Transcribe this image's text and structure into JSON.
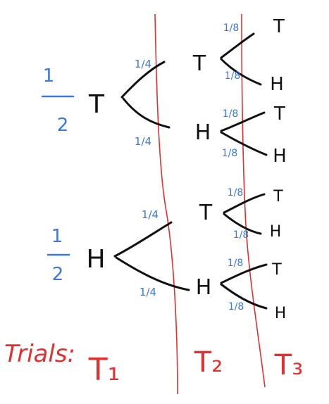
{
  "colors": {
    "ink": "#111111",
    "probability": "#3b78d8",
    "divider": "#e03030"
  },
  "first_level": {
    "top": {
      "prob_num": "1",
      "prob_den": "2",
      "outcome": "T"
    },
    "bottom": {
      "prob_num": "1",
      "prob_den": "2",
      "outcome": "H"
    }
  },
  "second_level": {
    "upper_T": {
      "prob": "1/4",
      "outcome": "T"
    },
    "upper_H": {
      "prob": "1/4",
      "outcome": "H"
    },
    "lower_T": {
      "prob": "1/4",
      "outcome": "T"
    },
    "lower_H": {
      "prob": "1/4",
      "outcome": "H"
    }
  },
  "third_level": [
    {
      "prob": "1/8",
      "outcome": "T"
    },
    {
      "prob": "1/8",
      "outcome": "H"
    },
    {
      "prob": "1/8",
      "outcome": "T"
    },
    {
      "prob": "1/8",
      "outcome": "H"
    },
    {
      "prob": "1/8",
      "outcome": "T"
    },
    {
      "prob": "1/8",
      "outcome": "H"
    },
    {
      "prob": "1/8",
      "outcome": "T"
    },
    {
      "prob": "1/8",
      "outcome": "H"
    }
  ],
  "trials": {
    "label": "Trials:",
    "t1": "T₁",
    "t2": "T₂",
    "t3": "T₃"
  }
}
